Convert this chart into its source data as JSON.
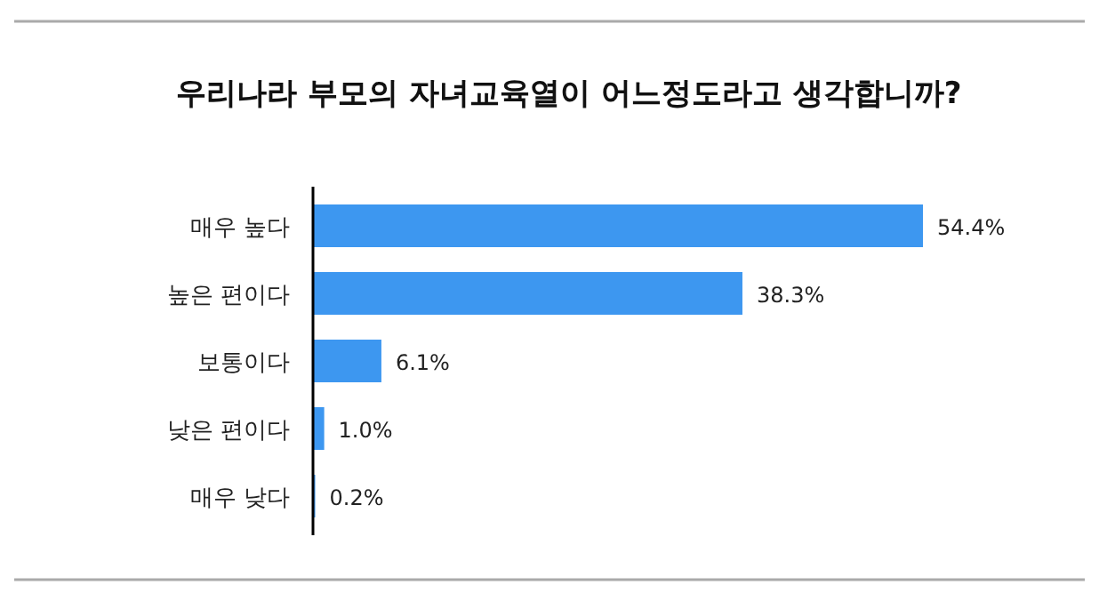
{
  "chart_data": {
    "type": "bar",
    "orientation": "horizontal",
    "title": "우리나라 부모의 자녀교육열이 어느정도라고 생각합니까?",
    "categories": [
      "매우 높다",
      "높은 편이다",
      "보통이다",
      "낮은 편이다",
      "매우 낮다"
    ],
    "values": [
      54.4,
      38.3,
      6.1,
      1.0,
      0.2
    ],
    "value_labels": [
      "54.4%",
      "38.3%",
      "6.1%",
      "1.0%",
      "0.2%"
    ],
    "color": "#3d97f0"
  }
}
